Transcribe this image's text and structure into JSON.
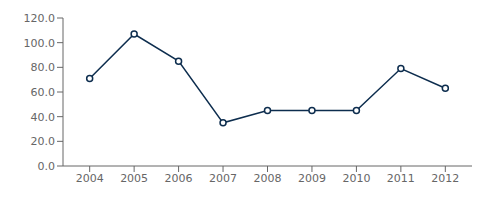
{
  "chart_data": {
    "type": "line",
    "x": [
      2004,
      2005,
      2006,
      2007,
      2008,
      2009,
      2010,
      2011,
      2012
    ],
    "values": [
      71.0,
      107.0,
      85.0,
      35.0,
      45.0,
      45.0,
      45.0,
      79.0,
      63.0
    ],
    "color": "#0d2d4e",
    "marker": "circle",
    "xlim": [
      2003.4,
      2012.6
    ],
    "xticks": [
      2004,
      2005,
      2006,
      2007,
      2008,
      2009,
      2010,
      2011,
      2012
    ],
    "ylim": [
      0.0,
      120.0
    ],
    "yticks": [
      {
        "value": 0,
        "label": "0.0"
      },
      {
        "value": 20,
        "label": "20.0"
      },
      {
        "value": 40,
        "label": "40.0"
      },
      {
        "value": 60,
        "label": "60.0"
      },
      {
        "value": 80,
        "label": "80.0"
      },
      {
        "value": 100,
        "label": "100.0"
      },
      {
        "value": 120,
        "label": "120.0"
      }
    ],
    "grid": false
  }
}
